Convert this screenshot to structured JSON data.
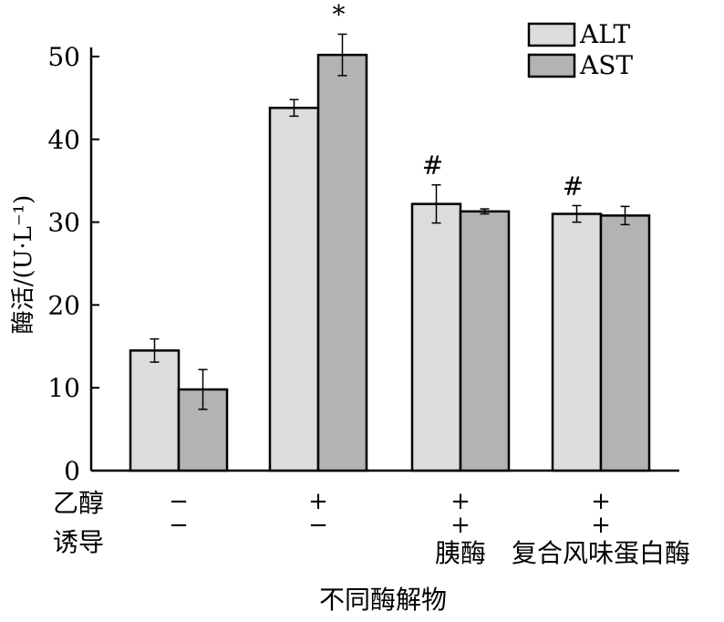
{
  "chart_data": {
    "type": "bar",
    "title": "",
    "xlabel": "不同酶解物",
    "ylabel": "酶活/(U·L⁻¹)",
    "ylim": [
      0,
      50
    ],
    "yticks": [
      0,
      10,
      20,
      30,
      40,
      50
    ],
    "grid": false,
    "legend": "top-right",
    "colors": {
      "ALT": "#dcdcdc",
      "AST": "#b3b3b3"
    },
    "row_labels": [
      "乙醇",
      "诱导"
    ],
    "categories": [
      {
        "ethanol": "−",
        "induce": "−",
        "name": ""
      },
      {
        "ethanol": "+",
        "induce": "−",
        "name": ""
      },
      {
        "ethanol": "+",
        "induce": "+",
        "name": "胰酶"
      },
      {
        "ethanol": "+",
        "induce": "+",
        "name": "复合风味蛋白酶"
      }
    ],
    "series": [
      {
        "name": "ALT",
        "values": [
          14.5,
          43.8,
          32.2,
          31.0
        ],
        "errors": [
          1.4,
          1.0,
          2.3,
          1.0
        ]
      },
      {
        "name": "AST",
        "values": [
          9.8,
          50.2,
          31.3,
          30.8
        ],
        "errors": [
          2.4,
          2.5,
          0.3,
          1.1
        ]
      }
    ],
    "annotations": [
      "",
      "*",
      "#",
      "#"
    ]
  }
}
